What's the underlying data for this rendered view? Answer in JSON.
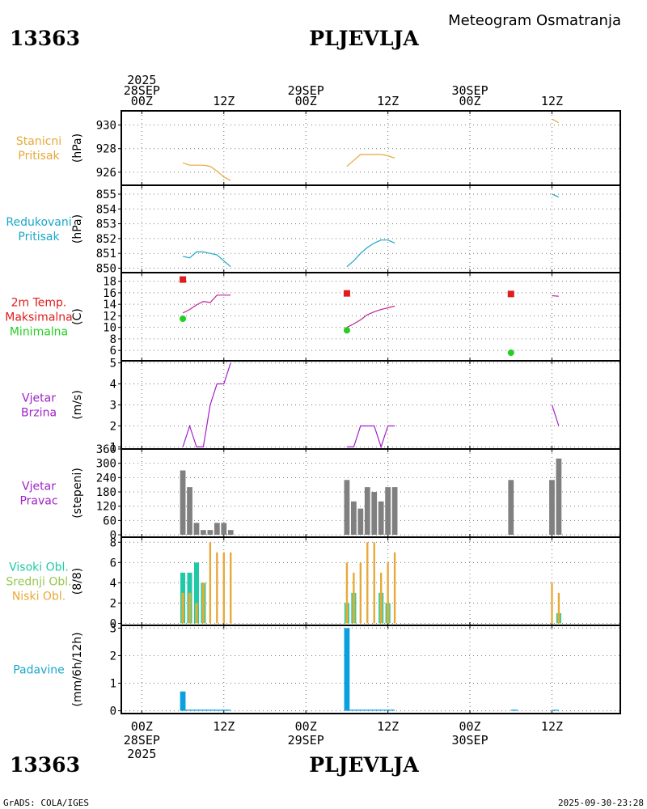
{
  "station_id": "13363",
  "station_name": "PLJEVLJA",
  "chart_title": "Meteogram Osmatranja",
  "footer_left": "GrADS: COLA/IGES",
  "footer_right": "2025-09-30-23:28",
  "colors": {
    "orange": "#e8a838",
    "cyan": "#1aa7c9",
    "red": "#e01c1c",
    "green": "#22d022",
    "purple": "#a020c8",
    "gray": "#808080",
    "teal": "#20c8a8",
    "olive": "#98c850",
    "blue": "#0aa0e0"
  },
  "chart_data": {
    "type": "meteogram",
    "time_axis": {
      "start": "2025-09-28 00Z",
      "top_labels": [
        {
          "hour": 0,
          "lines": [
            "2025",
            "28SEP",
            "00Z"
          ]
        },
        {
          "hour": 12,
          "lines": [
            "12Z"
          ]
        },
        {
          "hour": 24,
          "lines": [
            "29SEP",
            "00Z"
          ]
        },
        {
          "hour": 36,
          "lines": [
            "12Z"
          ]
        },
        {
          "hour": 48,
          "lines": [
            "30SEP",
            "00Z"
          ]
        },
        {
          "hour": 60,
          "lines": [
            "12Z"
          ]
        }
      ],
      "bottom_labels": [
        {
          "hour": 0,
          "lines": [
            "00Z",
            "28SEP",
            "2025"
          ]
        },
        {
          "hour": 12,
          "lines": [
            "12Z"
          ]
        },
        {
          "hour": 24,
          "lines": [
            "00Z",
            "29SEP"
          ]
        },
        {
          "hour": 36,
          "lines": [
            "12Z"
          ]
        },
        {
          "hour": 48,
          "lines": [
            "00Z",
            "30SEP"
          ]
        },
        {
          "hour": 60,
          "lines": [
            "12Z"
          ]
        }
      ],
      "range_hours": [
        -3,
        70
      ]
    },
    "panels": [
      {
        "id": "station-pressure",
        "labels": [
          {
            "text": "Stanicni",
            "color": "#e8a838"
          },
          {
            "text": "Pritisak",
            "color": "#e8a838"
          }
        ],
        "unit": "(hPa)",
        "ylim": [
          924.9,
          931.2
        ],
        "ticks": [
          926,
          928,
          930
        ],
        "series": [
          {
            "kind": "line",
            "color": "#e8a838",
            "points": [
              [
                6,
                926.8
              ],
              [
                7,
                926.6
              ],
              [
                8,
                926.6
              ],
              [
                9,
                926.6
              ],
              [
                10,
                926.5
              ],
              [
                11,
                926.1
              ],
              [
                12,
                925.6
              ],
              [
                13,
                925.3
              ]
            ]
          },
          {
            "kind": "line",
            "color": "#e8a838",
            "points": [
              [
                30,
                926.5
              ],
              [
                31,
                927
              ],
              [
                32,
                927.5
              ],
              [
                33,
                927.5
              ],
              [
                34,
                927.5
              ],
              [
                35,
                927.5
              ],
              [
                36,
                927.4
              ],
              [
                37,
                927.2
              ]
            ]
          },
          {
            "kind": "line",
            "color": "#e8a838",
            "points": [
              [
                60,
                930.5
              ],
              [
                61,
                930.2
              ]
            ]
          }
        ]
      },
      {
        "id": "reduced-pressure",
        "labels": [
          {
            "text": "Redukovani",
            "color": "#1aa7c9"
          },
          {
            "text": "Pritisak",
            "color": "#1aa7c9"
          }
        ],
        "unit": "(hPa)",
        "ylim": [
          849.7,
          855.6
        ],
        "ticks": [
          850,
          851,
          852,
          853,
          854,
          855
        ],
        "series": [
          {
            "kind": "line",
            "color": "#1aa7c9",
            "points": [
              [
                6,
                850.8
              ],
              [
                7,
                850.7
              ],
              [
                8,
                851.1
              ],
              [
                9,
                851.1
              ],
              [
                10,
                851
              ],
              [
                11,
                850.9
              ],
              [
                12,
                850.5
              ],
              [
                13,
                850.1
              ]
            ]
          },
          {
            "kind": "line",
            "color": "#1aa7c9",
            "points": [
              [
                30,
                850.1
              ],
              [
                31,
                850.5
              ],
              [
                32,
                851
              ],
              [
                33,
                851.4
              ],
              [
                34,
                851.7
              ],
              [
                35,
                851.9
              ],
              [
                36,
                851.9
              ],
              [
                37,
                851.7
              ]
            ]
          },
          {
            "kind": "line",
            "color": "#1aa7c9",
            "points": [
              [
                60,
                855
              ],
              [
                61,
                854.8
              ]
            ]
          }
        ]
      },
      {
        "id": "temperature",
        "labels": [
          {
            "text": "2m Temp.",
            "color": "#e01c1c"
          },
          {
            "text": "Maksimalna",
            "color": "#e01c1c"
          },
          {
            "text": "Minimalna",
            "color": "#22d022"
          }
        ],
        "unit": "(C)",
        "ylim": [
          4.2,
          19.5
        ],
        "ticks": [
          6,
          8,
          10,
          12,
          14,
          16,
          18
        ],
        "series": [
          {
            "kind": "line",
            "color": "#c02090",
            "points": [
              [
                6,
                12.5
              ],
              [
                7,
                13.1
              ],
              [
                8,
                13.9
              ],
              [
                9,
                14.5
              ],
              [
                10,
                14.3
              ],
              [
                11,
                15.6
              ],
              [
                12,
                15.6
              ],
              [
                13,
                15.6
              ]
            ]
          },
          {
            "kind": "line",
            "color": "#c02090",
            "points": [
              [
                30,
                10
              ],
              [
                31,
                10.6
              ],
              [
                32,
                11.3
              ],
              [
                33,
                12.2
              ],
              [
                34,
                12.7
              ],
              [
                35,
                13.1
              ],
              [
                36,
                13.4
              ],
              [
                37,
                13.7
              ]
            ]
          },
          {
            "kind": "line",
            "color": "#c02090",
            "points": [
              [
                60,
                15.5
              ],
              [
                61,
                15.4
              ]
            ]
          },
          {
            "kind": "square",
            "color": "#e01c1c",
            "points": [
              [
                6,
                18.3
              ],
              [
                30,
                15.9
              ],
              [
                54,
                15.8
              ]
            ]
          },
          {
            "kind": "circle",
            "color": "#22d022",
            "points": [
              [
                6,
                11.5
              ],
              [
                30,
                9.5
              ],
              [
                54,
                5.6
              ]
            ]
          }
        ]
      },
      {
        "id": "wind-speed",
        "labels": [
          {
            "text": "Vjetar",
            "color": "#a020c8"
          },
          {
            "text": "Brzina",
            "color": "#a020c8"
          }
        ],
        "unit": "(m/s)",
        "ylim": [
          0.9,
          5.1
        ],
        "ticks": [
          1,
          2,
          3,
          4,
          5
        ],
        "series": [
          {
            "kind": "line",
            "color": "#a020c8",
            "points": [
              [
                6,
                1
              ],
              [
                7,
                2
              ],
              [
                8,
                1
              ],
              [
                9,
                1
              ],
              [
                10,
                3
              ],
              [
                11,
                4
              ],
              [
                12,
                4
              ],
              [
                13,
                5
              ]
            ]
          },
          {
            "kind": "line",
            "color": "#a020c8",
            "points": [
              [
                30,
                1
              ],
              [
                31,
                1
              ],
              [
                32,
                2
              ],
              [
                33,
                2
              ],
              [
                34,
                2
              ],
              [
                35,
                1
              ],
              [
                36,
                2
              ],
              [
                37,
                2
              ]
            ]
          },
          {
            "kind": "line",
            "color": "#a020c8",
            "points": [
              [
                60,
                3
              ],
              [
                61,
                2
              ]
            ]
          }
        ]
      },
      {
        "id": "wind-direction",
        "labels": [
          {
            "text": "Vjetar",
            "color": "#a020c8"
          },
          {
            "text": "Pravac",
            "color": "#a020c8"
          }
        ],
        "unit": "(stepeni)",
        "ylim": [
          -10,
          360
        ],
        "ticks": [
          0,
          60,
          120,
          180,
          240,
          300,
          360
        ],
        "series": [
          {
            "kind": "bar",
            "color": "#808080",
            "width": 0.8,
            "points": [
              [
                6,
                270
              ],
              [
                7,
                200
              ],
              [
                8,
                50
              ],
              [
                9,
                20
              ],
              [
                10,
                20
              ],
              [
                11,
                50
              ],
              [
                12,
                50
              ],
              [
                13,
                20
              ],
              [
                30,
                230
              ],
              [
                31,
                140
              ],
              [
                32,
                110
              ],
              [
                33,
                200
              ],
              [
                34,
                180
              ],
              [
                35,
                140
              ],
              [
                36,
                200
              ],
              [
                37,
                200
              ],
              [
                54,
                230
              ],
              [
                60,
                230
              ],
              [
                61,
                320
              ]
            ]
          }
        ]
      },
      {
        "id": "clouds",
        "labels": [
          {
            "text": "Visoki Obl.",
            "color": "#20c8a8"
          },
          {
            "text": "Srednji Obl.",
            "color": "#98c850"
          },
          {
            "text": "Niski Obl.",
            "color": "#e8a838"
          }
        ],
        "unit": "(8/8)",
        "ylim": [
          -0.2,
          8.5
        ],
        "ticks": [
          0,
          2,
          4,
          6,
          8
        ],
        "series": [
          {
            "kind": "bar",
            "color": "#20c8a8",
            "width": 0.72,
            "points": [
              [
                6,
                5
              ],
              [
                7,
                5
              ],
              [
                8,
                6
              ],
              [
                9,
                4
              ],
              [
                30,
                2
              ],
              [
                31,
                3
              ],
              [
                35,
                3
              ],
              [
                36,
                2
              ],
              [
                61,
                1
              ]
            ]
          },
          {
            "kind": "bar",
            "color": "#98c850",
            "width": 0.44,
            "points": [
              [
                6,
                3
              ],
              [
                7,
                3
              ],
              [
                8,
                2
              ],
              [
                9,
                4
              ],
              [
                30,
                2
              ],
              [
                31,
                3
              ],
              [
                35,
                3
              ],
              [
                36,
                2
              ],
              [
                61,
                1
              ]
            ]
          },
          {
            "kind": "bar",
            "color": "#e8a838",
            "width": 0.28,
            "points": [
              [
                6,
                3
              ],
              [
                7,
                3
              ],
              [
                8,
                2
              ],
              [
                9,
                4
              ],
              [
                10,
                8
              ],
              [
                11,
                7
              ],
              [
                12,
                7
              ],
              [
                13,
                7
              ],
              [
                30,
                6
              ],
              [
                31,
                5
              ],
              [
                32,
                6
              ],
              [
                33,
                8
              ],
              [
                34,
                8
              ],
              [
                35,
                5
              ],
              [
                36,
                6
              ],
              [
                37,
                7
              ],
              [
                60,
                4
              ],
              [
                61,
                3
              ]
            ]
          }
        ]
      },
      {
        "id": "precipitation",
        "labels": [
          {
            "text": "Padavine",
            "color": "#1aa7c9"
          }
        ],
        "unit": "(mm/6h/12h)",
        "ylim": [
          -0.1,
          3.1
        ],
        "ticks": [
          0,
          1,
          2,
          3
        ],
        "series": [
          {
            "kind": "bar",
            "color": "#0aa0e0",
            "width": 0.8,
            "points": [
              [
                6,
                0.7
              ],
              [
                30,
                3.0
              ]
            ]
          },
          {
            "kind": "line",
            "color": "#0aa0e0",
            "points": [
              [
                6,
                0.02
              ],
              [
                13,
                0.02
              ]
            ]
          },
          {
            "kind": "line",
            "color": "#0aa0e0",
            "points": [
              [
                30,
                0.02
              ],
              [
                37,
                0.02
              ]
            ]
          },
          {
            "kind": "line",
            "color": "#0aa0e0",
            "points": [
              [
                54,
                0.02
              ],
              [
                55,
                0.02
              ]
            ]
          },
          {
            "kind": "line",
            "color": "#0aa0e0",
            "points": [
              [
                60,
                0.02
              ],
              [
                61,
                0.02
              ]
            ]
          }
        ]
      }
    ]
  }
}
